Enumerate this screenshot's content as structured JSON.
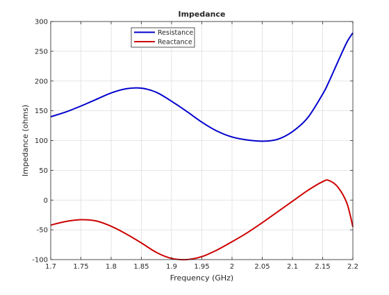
{
  "chart_data": {
    "type": "line",
    "title": "Impedance",
    "xlabel": "Frequency (GHz)",
    "ylabel": "Impedance (ohms)",
    "xlim": [
      1.7,
      2.2
    ],
    "ylim": [
      -100,
      300
    ],
    "xticks": [
      "1.7",
      "1.75",
      "1.8",
      "1.85",
      "1.9",
      "1.95",
      "2",
      "2.05",
      "2.1",
      "2.15",
      "2.2"
    ],
    "yticks": [
      "-100",
      "-50",
      "0",
      "50",
      "100",
      "150",
      "200",
      "250",
      "300"
    ],
    "grid": true,
    "legend_location": "top-left",
    "x": [
      1.7,
      1.725,
      1.75,
      1.775,
      1.8,
      1.825,
      1.85,
      1.875,
      1.9,
      1.925,
      1.95,
      1.975,
      2.0,
      2.025,
      2.05,
      2.075,
      2.1,
      2.125,
      2.15,
      2.16,
      2.175,
      2.19,
      2.2
    ],
    "series": [
      {
        "name": "Resistance",
        "color": "#0000cc",
        "values": [
          140,
          148,
          158,
          169,
          180,
          187,
          188,
          181,
          166,
          149,
          131,
          116,
          106,
          101,
          99,
          102,
          115,
          138,
          178,
          198,
          232,
          265,
          281
        ]
      },
      {
        "name": "Reactance",
        "color": "#cc0000",
        "values": [
          -42,
          -36,
          -33,
          -35,
          -44,
          -57,
          -72,
          -88,
          -98,
          -100,
          -95,
          -84,
          -70,
          -55,
          -38,
          -20,
          -2,
          16,
          31,
          33,
          22,
          -5,
          -45
        ]
      }
    ]
  }
}
